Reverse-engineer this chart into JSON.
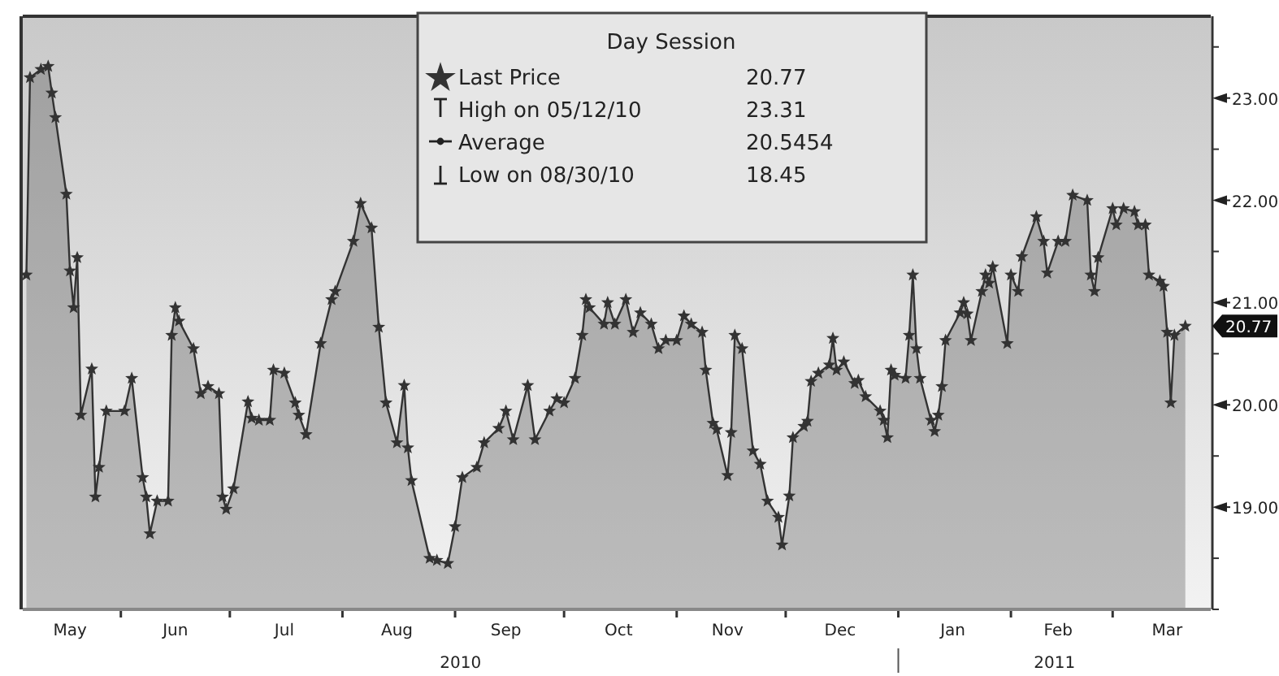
{
  "chart_data": {
    "type": "area",
    "legend_title": "Day Session",
    "legend": "top",
    "marker": "star",
    "grid": false,
    "x": [
      "2010-05-06",
      "2010-05-07",
      "2010-05-10",
      "2010-05-12",
      "2010-05-13",
      "2010-05-14",
      "2010-05-17",
      "2010-05-18",
      "2010-05-19",
      "2010-05-20",
      "2010-05-21",
      "2010-05-24",
      "2010-05-25",
      "2010-05-26",
      "2010-05-28",
      "2010-06-02",
      "2010-06-04",
      "2010-06-07",
      "2010-06-08",
      "2010-06-09",
      "2010-06-11",
      "2010-06-14",
      "2010-06-15",
      "2010-06-16",
      "2010-06-17",
      "2010-06-21",
      "2010-06-23",
      "2010-06-25",
      "2010-06-28",
      "2010-06-29",
      "2010-06-30",
      "2010-07-02",
      "2010-07-06",
      "2010-07-07",
      "2010-07-09",
      "2010-07-12",
      "2010-07-13",
      "2010-07-16",
      "2010-07-19",
      "2010-07-20",
      "2010-07-22",
      "2010-07-26",
      "2010-07-29",
      "2010-07-30",
      "2010-08-04",
      "2010-08-06",
      "2010-08-09",
      "2010-08-11",
      "2010-08-13",
      "2010-08-16",
      "2010-08-18",
      "2010-08-19",
      "2010-08-20",
      "2010-08-25",
      "2010-08-27",
      "2010-08-30",
      "2010-09-01",
      "2010-09-03",
      "2010-09-07",
      "2010-09-09",
      "2010-09-13",
      "2010-09-15",
      "2010-09-17",
      "2010-09-21",
      "2010-09-23",
      "2010-09-27",
      "2010-09-29",
      "2010-10-01",
      "2010-10-04",
      "2010-10-06",
      "2010-10-07",
      "2010-10-08",
      "2010-10-12",
      "2010-10-13",
      "2010-10-15",
      "2010-10-18",
      "2010-10-20",
      "2010-10-22",
      "2010-10-25",
      "2010-10-27",
      "2010-10-29",
      "2010-11-01",
      "2010-11-03",
      "2010-11-05",
      "2010-11-08",
      "2010-11-09",
      "2010-11-11",
      "2010-11-12",
      "2010-11-15",
      "2010-11-16",
      "2010-11-17",
      "2010-11-19",
      "2010-11-22",
      "2010-11-24",
      "2010-11-26",
      "2010-11-29",
      "2010-11-30",
      "2010-12-02",
      "2010-12-03",
      "2010-12-06",
      "2010-12-07",
      "2010-12-08",
      "2010-12-10",
      "2010-12-13",
      "2010-12-14",
      "2010-12-15",
      "2010-12-17",
      "2010-12-20",
      "2010-12-21",
      "2010-12-23",
      "2010-12-27",
      "2010-12-28",
      "2010-12-29",
      "2010-12-30",
      "2010-12-31",
      "2011-01-03",
      "2011-01-04",
      "2011-01-05",
      "2011-01-06",
      "2011-01-07",
      "2011-01-10",
      "2011-01-11",
      "2011-01-12",
      "2011-01-13",
      "2011-01-14",
      "2011-01-18",
      "2011-01-19",
      "2011-01-20",
      "2011-01-21",
      "2011-01-24",
      "2011-01-25",
      "2011-01-26",
      "2011-01-27",
      "2011-01-31",
      "2011-02-01",
      "2011-02-03",
      "2011-02-04",
      "2011-02-08",
      "2011-02-10",
      "2011-02-11",
      "2011-02-14",
      "2011-02-16",
      "2011-02-18",
      "2011-02-22",
      "2011-02-23",
      "2011-02-24",
      "2011-02-25",
      "2011-03-01",
      "2011-03-02",
      "2011-03-04",
      "2011-03-07",
      "2011-03-08",
      "2011-03-10",
      "2011-03-11",
      "2011-03-14",
      "2011-03-15",
      "2011-03-16",
      "2011-03-17",
      "2011-03-18",
      "2011-03-21"
    ],
    "series": [
      {
        "name": "Last Price",
        "color": "#333333",
        "values": [
          21.27,
          23.2,
          23.28,
          23.31,
          23.05,
          22.81,
          22.06,
          21.31,
          20.95,
          21.44,
          19.9,
          20.35,
          19.1,
          19.39,
          19.94,
          19.94,
          20.26,
          19.29,
          19.1,
          18.74,
          19.06,
          19.06,
          20.68,
          20.95,
          20.82,
          20.55,
          20.11,
          20.18,
          20.11,
          19.1,
          18.98,
          19.18,
          20.03,
          19.87,
          19.85,
          19.85,
          20.34,
          20.31,
          20.02,
          19.9,
          19.71,
          20.6,
          21.03,
          21.11,
          21.6,
          21.97,
          21.73,
          20.76,
          20.02,
          19.63,
          20.19,
          19.58,
          19.26,
          18.5,
          18.48,
          18.45,
          18.81,
          19.29,
          19.39,
          19.63,
          19.77,
          19.94,
          19.66,
          20.19,
          19.66,
          19.94,
          20.06,
          20.02,
          20.26,
          20.68,
          21.03,
          20.95,
          20.79,
          21.0,
          20.79,
          21.03,
          20.71,
          20.9,
          20.79,
          20.55,
          20.63,
          20.63,
          20.87,
          20.79,
          20.71,
          20.34,
          19.82,
          19.76,
          19.31,
          19.73,
          20.68,
          20.55,
          19.55,
          19.42,
          19.06,
          18.9,
          18.63,
          19.11,
          19.68,
          19.79,
          19.84,
          20.23,
          20.31,
          20.39,
          20.65,
          20.34,
          20.42,
          20.21,
          20.24,
          20.08,
          19.94,
          19.85,
          19.68,
          20.34,
          20.29,
          20.26,
          20.68,
          21.27,
          20.55,
          20.26,
          19.85,
          19.74,
          19.9,
          20.18,
          20.63,
          20.9,
          21.0,
          20.89,
          20.63,
          21.11,
          21.27,
          21.19,
          21.35,
          20.6,
          21.27,
          21.11,
          21.45,
          21.84,
          21.6,
          21.29,
          21.6,
          21.6,
          22.05,
          22.0,
          21.27,
          21.11,
          21.44,
          21.92,
          21.76,
          21.92,
          21.89,
          21.76,
          21.76,
          21.27,
          21.21,
          21.16,
          20.71,
          20.02,
          20.68,
          20.77
        ]
      }
    ],
    "xlim": [
      "2010-05-05",
      "2011-03-28"
    ],
    "xticks": [
      {
        "value": "2010-06-01",
        "label": null
      },
      {
        "value": "2010-07-01",
        "label": null
      },
      {
        "value": "2010-08-01",
        "label": null
      },
      {
        "value": "2010-09-01",
        "label": null
      },
      {
        "value": "2010-10-01",
        "label": null
      },
      {
        "value": "2010-11-01",
        "label": null
      },
      {
        "value": "2010-12-01",
        "label": null
      },
      {
        "value": "2011-01-01",
        "label": null
      },
      {
        "value": "2011-02-01",
        "label": null
      },
      {
        "value": "2011-03-01",
        "label": null
      },
      {
        "value": "2010-05-18",
        "label": "May"
      },
      {
        "value": "2010-06-16",
        "label": "Jun"
      },
      {
        "value": "2010-07-16",
        "label": "Jul"
      },
      {
        "value": "2010-08-16",
        "label": "Aug"
      },
      {
        "value": "2010-09-15",
        "label": "Sep"
      },
      {
        "value": "2010-10-16",
        "label": "Oct"
      },
      {
        "value": "2010-11-15",
        "label": "Nov"
      },
      {
        "value": "2010-12-16",
        "label": "Dec"
      },
      {
        "value": "2011-01-16",
        "label": "Jan"
      },
      {
        "value": "2011-02-14",
        "label": "Feb"
      },
      {
        "value": "2011-03-16",
        "label": "Mar"
      }
    ],
    "ylim": [
      18,
      23.8
    ],
    "yticks": [
      {
        "value": 18,
        "label": null
      },
      {
        "value": 18.5,
        "label": null
      },
      {
        "value": 19,
        "label": "19.00"
      },
      {
        "value": 19.5,
        "label": null
      },
      {
        "value": 20,
        "label": "20.00"
      },
      {
        "value": 20.5,
        "label": null
      },
      {
        "value": 21,
        "label": "21.00"
      },
      {
        "value": 21.5,
        "label": null
      },
      {
        "value": 22,
        "label": "22.00"
      },
      {
        "value": 22.5,
        "label": null
      },
      {
        "value": 23,
        "label": "23.00"
      },
      {
        "value": 23.5,
        "label": null
      }
    ],
    "annotations": [
      "20.77",
      "High on 05/12/10 23.31",
      "Average 20.5454",
      "Low on 08/30/10 18.45",
      "2010",
      "2011"
    ]
  }
}
